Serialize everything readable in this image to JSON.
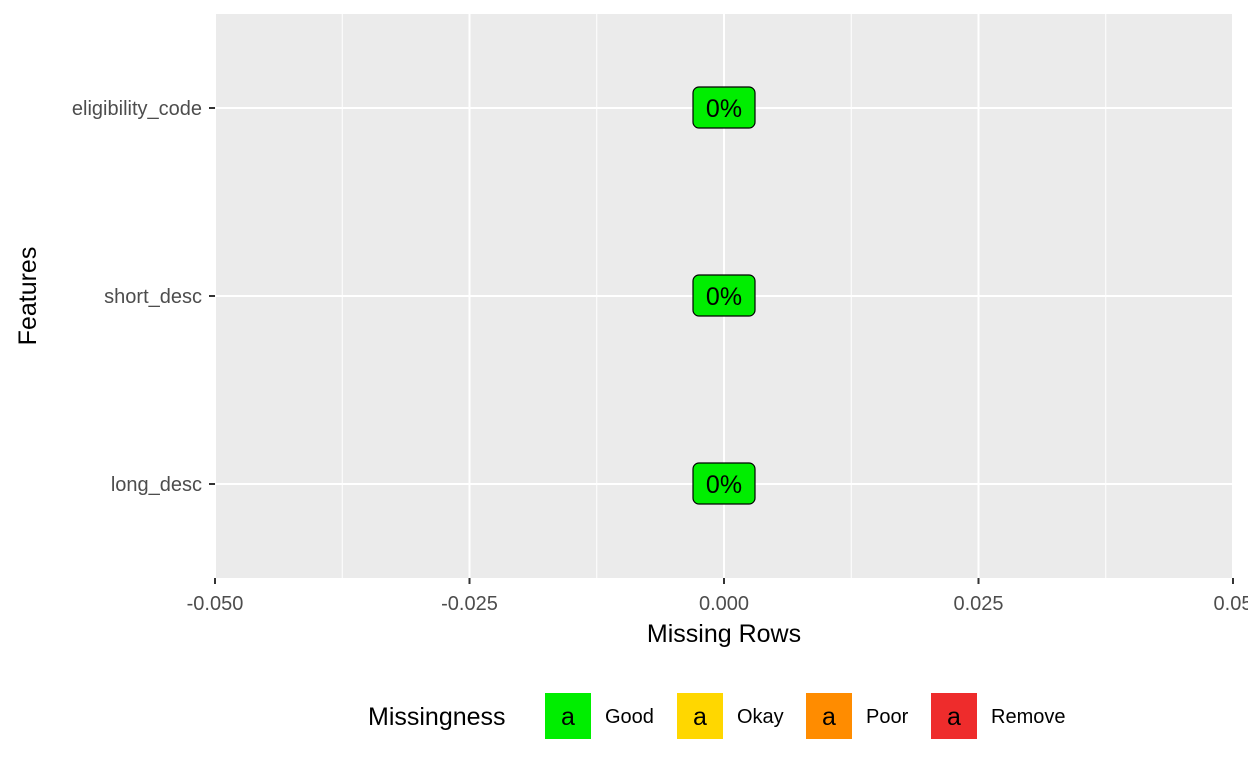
{
  "chart_data": {
    "type": "bar",
    "orientation": "horizontal",
    "xlabel": "Missing Rows",
    "ylabel": "Features",
    "xlim": [
      -0.05,
      0.05
    ],
    "x_ticks": [
      -0.05,
      -0.025,
      0.0,
      0.025,
      0.05
    ],
    "x_tick_labels": [
      "-0.050",
      "-0.025",
      "0.000",
      "0.025",
      "0.05"
    ],
    "categories": [
      "long_desc",
      "short_desc",
      "eligibility_code"
    ],
    "values": [
      0,
      0,
      0
    ],
    "data_labels": [
      "0%",
      "0%",
      "0%"
    ],
    "value_groups": [
      "Good",
      "Good",
      "Good"
    ],
    "grid": true,
    "background": "#ebebeb",
    "legend": {
      "title": "Missingness",
      "position": "bottom",
      "key_glyph": "a",
      "items": [
        {
          "label": "Good",
          "color": "#00ee00"
        },
        {
          "label": "Okay",
          "color": "#ffd700"
        },
        {
          "label": "Poor",
          "color": "#ff8c00"
        },
        {
          "label": "Remove",
          "color": "#ee2c2c"
        }
      ]
    }
  }
}
